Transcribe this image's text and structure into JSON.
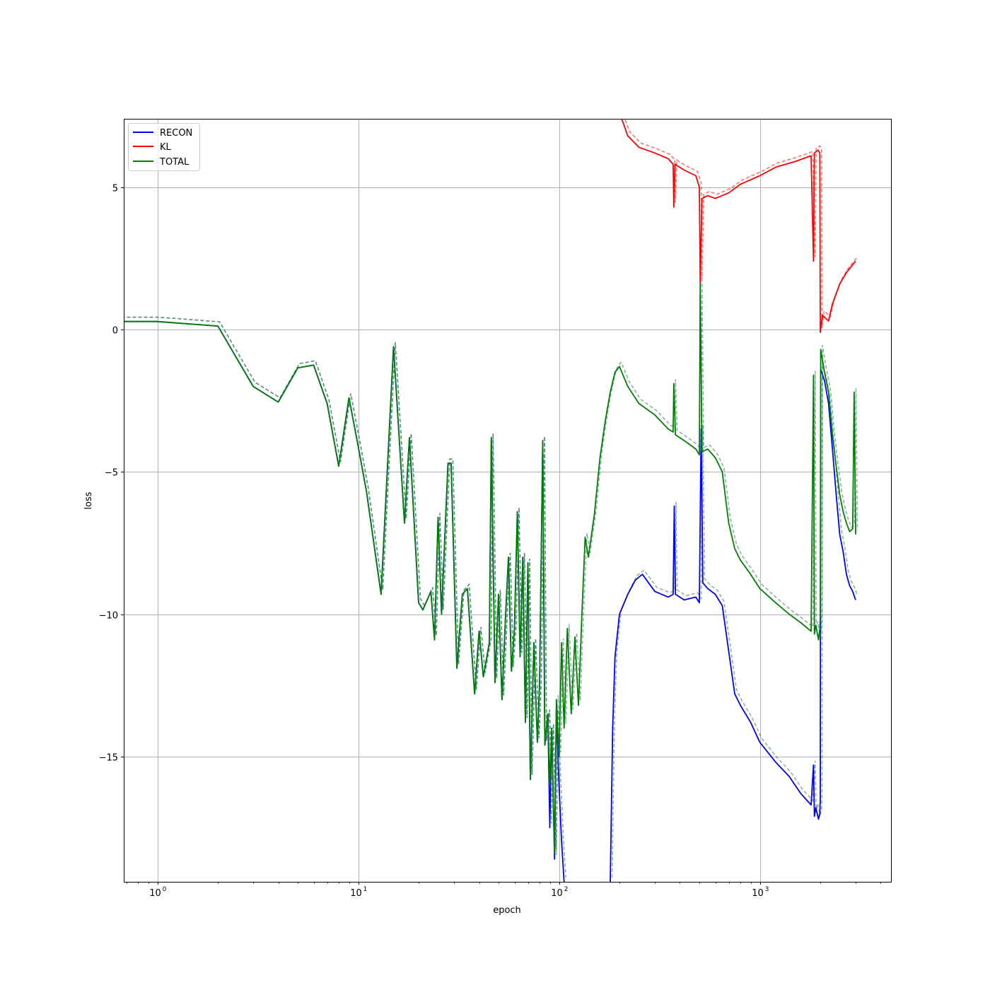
{
  "chart_data": {
    "type": "line",
    "title": "",
    "xlabel": "epoch",
    "ylabel": "loss",
    "x_scale": "log",
    "xlim": [
      0.68,
      4500
    ],
    "ylim": [
      -19.4,
      7.4
    ],
    "grid": true,
    "legend_position": "top-left",
    "x_ticks": [
      {
        "value": 1,
        "base": "10",
        "exp": "0"
      },
      {
        "value": 10,
        "base": "10",
        "exp": "1"
      },
      {
        "value": 100,
        "base": "10",
        "exp": "2"
      },
      {
        "value": 1000,
        "base": "10",
        "exp": "3"
      }
    ],
    "y_ticks": [
      {
        "value": 5,
        "label": "5"
      },
      {
        "value": 0,
        "label": "0"
      },
      {
        "value": -5,
        "label": "−5"
      },
      {
        "value": -10,
        "label": "−10"
      },
      {
        "value": -15,
        "label": "−15"
      }
    ],
    "series": [
      {
        "name": "RECON",
        "color": "#0000ff",
        "points": [
          [
            0.5,
            0.28
          ],
          [
            1,
            0.28
          ],
          [
            2,
            0.12
          ],
          [
            3,
            -2.0
          ],
          [
            4,
            -2.55
          ],
          [
            5,
            -1.35
          ],
          [
            6,
            -1.25
          ],
          [
            7,
            -2.6
          ],
          [
            8,
            -4.8
          ],
          [
            9,
            -2.4
          ],
          [
            10,
            -4.1
          ],
          [
            11,
            -5.7
          ],
          [
            13,
            -9.3
          ],
          [
            15,
            -0.6
          ],
          [
            17,
            -6.8
          ],
          [
            18,
            -3.8
          ],
          [
            20,
            -9.6
          ],
          [
            21,
            -9.85
          ],
          [
            23,
            -9.2
          ],
          [
            24,
            -10.9
          ],
          [
            25,
            -6.6
          ],
          [
            26,
            -10.0
          ],
          [
            28,
            -4.7
          ],
          [
            29,
            -4.7
          ],
          [
            31,
            -11.9
          ],
          [
            33,
            -9.3
          ],
          [
            35,
            -9.1
          ],
          [
            38,
            -12.8
          ],
          [
            40,
            -10.6
          ],
          [
            42,
            -12.2
          ],
          [
            45,
            -11.0
          ],
          [
            46,
            -3.8
          ],
          [
            48,
            -12.4
          ],
          [
            50,
            -9.3
          ],
          [
            52,
            -13.0
          ],
          [
            54,
            -10.3
          ],
          [
            56,
            -8.0
          ],
          [
            58,
            -12.0
          ],
          [
            60,
            -10.5
          ],
          [
            62,
            -6.4
          ],
          [
            64,
            -11.5
          ],
          [
            66,
            -8.0
          ],
          [
            68,
            -13.8
          ],
          [
            70,
            -8.2
          ],
          [
            72,
            -15.8
          ],
          [
            75,
            -11.0
          ],
          [
            78,
            -14.5
          ],
          [
            80,
            -12.5
          ],
          [
            83,
            -3.9
          ],
          [
            85,
            -14.6
          ],
          [
            88,
            -13.5
          ],
          [
            90,
            -17.5
          ],
          [
            92,
            -14.0
          ],
          [
            95,
            -18.6
          ],
          [
            97,
            -13.5
          ],
          [
            100,
            -16.0
          ],
          [
            103,
            -18.0
          ],
          [
            106,
            -19.4
          ]
        ],
        "points_b": [
          [
            180,
            -19.4
          ],
          [
            185,
            -14.0
          ],
          [
            190,
            -11.5
          ],
          [
            200,
            -10.0
          ],
          [
            220,
            -9.3
          ],
          [
            240,
            -8.8
          ],
          [
            260,
            -8.6
          ],
          [
            300,
            -9.2
          ],
          [
            350,
            -9.4
          ],
          [
            370,
            -9.3
          ],
          [
            375,
            -6.2
          ],
          [
            380,
            -9.3
          ],
          [
            420,
            -9.5
          ],
          [
            480,
            -9.4
          ],
          [
            500,
            -9.6
          ],
          [
            510,
            -3.5
          ],
          [
            520,
            -8.9
          ],
          [
            550,
            -9.1
          ],
          [
            600,
            -9.3
          ],
          [
            650,
            -9.7
          ],
          [
            700,
            -11.3
          ],
          [
            750,
            -12.8
          ],
          [
            800,
            -13.2
          ],
          [
            900,
            -13.8
          ],
          [
            1000,
            -14.5
          ],
          [
            1200,
            -15.2
          ],
          [
            1400,
            -15.7
          ],
          [
            1600,
            -16.3
          ],
          [
            1800,
            -16.7
          ],
          [
            1850,
            -15.3
          ],
          [
            1870,
            -17.1
          ],
          [
            1900,
            -16.8
          ],
          [
            1960,
            -17.2
          ],
          [
            1990,
            -17.0
          ],
          [
            2000,
            -16.5
          ],
          [
            2010,
            -1.4
          ],
          [
            2100,
            -1.8
          ],
          [
            2200,
            -2.6
          ],
          [
            2300,
            -4.2
          ],
          [
            2400,
            -5.8
          ],
          [
            2500,
            -7.2
          ],
          [
            2600,
            -7.8
          ],
          [
            2700,
            -8.6
          ],
          [
            2800,
            -9.0
          ],
          [
            2900,
            -9.2
          ],
          [
            3000,
            -9.5
          ]
        ]
      },
      {
        "name": "KL",
        "color": "#ff0000",
        "points": [
          [
            205,
            7.4
          ],
          [
            220,
            6.8
          ],
          [
            250,
            6.4
          ],
          [
            300,
            6.2
          ],
          [
            350,
            6.0
          ],
          [
            370,
            5.8
          ],
          [
            373,
            4.3
          ],
          [
            378,
            5.8
          ],
          [
            420,
            5.6
          ],
          [
            480,
            5.4
          ],
          [
            500,
            5.0
          ],
          [
            505,
            1.6
          ],
          [
            515,
            4.6
          ],
          [
            550,
            4.7
          ],
          [
            600,
            4.6
          ],
          [
            700,
            4.8
          ],
          [
            800,
            5.1
          ],
          [
            1000,
            5.4
          ],
          [
            1200,
            5.7
          ],
          [
            1500,
            5.9
          ],
          [
            1800,
            6.1
          ],
          [
            1850,
            2.4
          ],
          [
            1870,
            6.2
          ],
          [
            1950,
            6.3
          ],
          [
            1990,
            6.2
          ],
          [
            2000,
            -0.1
          ],
          [
            2050,
            0.5
          ],
          [
            2200,
            0.3
          ],
          [
            2300,
            0.9
          ],
          [
            2500,
            1.6
          ],
          [
            2700,
            2.0
          ],
          [
            3000,
            2.4
          ]
        ]
      },
      {
        "name": "TOTAL",
        "color": "#008000",
        "points": [
          [
            0.5,
            0.28
          ],
          [
            1,
            0.28
          ],
          [
            2,
            0.12
          ],
          [
            3,
            -2.0
          ],
          [
            4,
            -2.55
          ],
          [
            5,
            -1.35
          ],
          [
            6,
            -1.25
          ],
          [
            7,
            -2.6
          ],
          [
            8,
            -4.8
          ],
          [
            9,
            -2.4
          ],
          [
            10,
            -4.1
          ],
          [
            11,
            -5.7
          ],
          [
            13,
            -9.3
          ],
          [
            15,
            -0.6
          ],
          [
            17,
            -6.8
          ],
          [
            18,
            -3.8
          ],
          [
            20,
            -9.6
          ],
          [
            21,
            -9.85
          ],
          [
            23,
            -9.2
          ],
          [
            24,
            -10.9
          ],
          [
            25,
            -6.6
          ],
          [
            26,
            -10.0
          ],
          [
            28,
            -4.7
          ],
          [
            29,
            -4.7
          ],
          [
            31,
            -11.9
          ],
          [
            33,
            -9.3
          ],
          [
            35,
            -9.1
          ],
          [
            38,
            -12.8
          ],
          [
            40,
            -10.6
          ],
          [
            42,
            -12.2
          ],
          [
            45,
            -11.0
          ],
          [
            46,
            -3.8
          ],
          [
            48,
            -12.4
          ],
          [
            50,
            -9.3
          ],
          [
            52,
            -13.0
          ],
          [
            54,
            -10.3
          ],
          [
            56,
            -8.0
          ],
          [
            58,
            -12.0
          ],
          [
            60,
            -10.5
          ],
          [
            62,
            -6.4
          ],
          [
            64,
            -11.5
          ],
          [
            66,
            -8.0
          ],
          [
            68,
            -13.8
          ],
          [
            70,
            -8.2
          ],
          [
            72,
            -15.8
          ],
          [
            75,
            -11.0
          ],
          [
            78,
            -14.5
          ],
          [
            80,
            -12.5
          ],
          [
            83,
            -3.9
          ],
          [
            85,
            -14.6
          ],
          [
            88,
            -13.5
          ],
          [
            90,
            -16.0
          ],
          [
            92,
            -14.0
          ],
          [
            95,
            -18.4
          ],
          [
            97,
            -13.0
          ],
          [
            100,
            -15.0
          ],
          [
            103,
            -11.0
          ],
          [
            106,
            -14.0
          ],
          [
            110,
            -10.5
          ],
          [
            115,
            -13.5
          ],
          [
            120,
            -10.8
          ],
          [
            125,
            -13.2
          ],
          [
            130,
            -10.0
          ],
          [
            135,
            -7.3
          ],
          [
            140,
            -8.0
          ],
          [
            150,
            -6.5
          ],
          [
            160,
            -4.5
          ],
          [
            170,
            -3.2
          ],
          [
            180,
            -2.2
          ],
          [
            190,
            -1.5
          ],
          [
            200,
            -1.3
          ],
          [
            220,
            -2.0
          ],
          [
            250,
            -2.6
          ],
          [
            300,
            -3.0
          ],
          [
            350,
            -3.5
          ],
          [
            370,
            -3.6
          ],
          [
            373,
            -1.9
          ],
          [
            380,
            -3.7
          ],
          [
            420,
            -3.9
          ],
          [
            480,
            -4.2
          ],
          [
            500,
            -4.4
          ],
          [
            505,
            1.6
          ],
          [
            515,
            -4.3
          ],
          [
            550,
            -4.2
          ],
          [
            600,
            -4.5
          ],
          [
            650,
            -5.0
          ],
          [
            700,
            -6.8
          ],
          [
            750,
            -7.7
          ],
          [
            800,
            -8.1
          ],
          [
            900,
            -8.6
          ],
          [
            1000,
            -9.1
          ],
          [
            1200,
            -9.6
          ],
          [
            1400,
            -10.0
          ],
          [
            1600,
            -10.3
          ],
          [
            1800,
            -10.6
          ],
          [
            1850,
            -1.6
          ],
          [
            1870,
            -10.7
          ],
          [
            1900,
            -10.4
          ],
          [
            1960,
            -10.9
          ],
          [
            1990,
            -10.5
          ],
          [
            2000,
            -10.0
          ],
          [
            2010,
            -0.7
          ],
          [
            2100,
            -1.5
          ],
          [
            2200,
            -2.2
          ],
          [
            2300,
            -3.7
          ],
          [
            2400,
            -4.8
          ],
          [
            2500,
            -5.8
          ],
          [
            2600,
            -6.4
          ],
          [
            2700,
            -6.8
          ],
          [
            2800,
            -7.1
          ],
          [
            2900,
            -7.0
          ],
          [
            2950,
            -2.2
          ],
          [
            3000,
            -7.2
          ]
        ]
      }
    ]
  }
}
